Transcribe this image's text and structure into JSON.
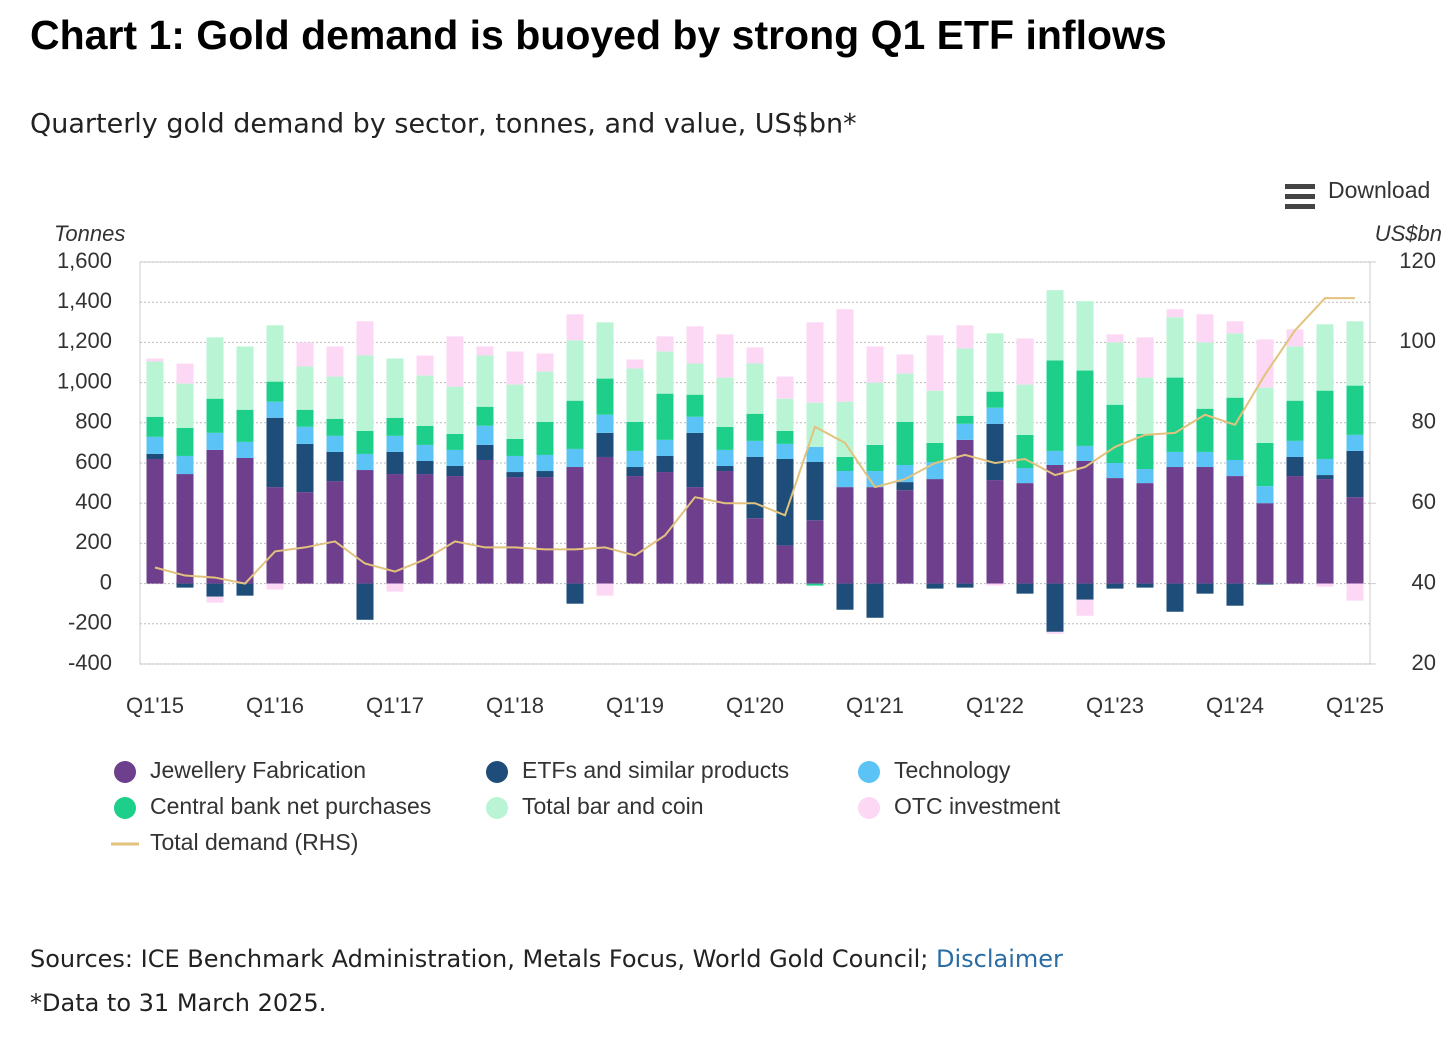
{
  "chart_data": {
    "type": "bar",
    "stacked": true,
    "title": "Chart 1: Gold demand is buoyed by strong Q1 ETF inflows",
    "subtitle": "Quarterly gold demand by sector, tonnes, and value, US$bn*",
    "download": "Download",
    "ylabel": "Tonnes",
    "y2label": "US$bn",
    "categories": [
      "Q1'15",
      null,
      null,
      null,
      "Q1'16",
      null,
      null,
      null,
      "Q1'17",
      null,
      null,
      null,
      "Q1'18",
      null,
      null,
      null,
      "Q1'19",
      null,
      null,
      null,
      "Q1'20",
      null,
      null,
      null,
      "Q1'21",
      null,
      null,
      null,
      "Q1'22",
      null,
      null,
      null,
      "Q1'23",
      null,
      null,
      null,
      "Q1'24",
      null,
      null,
      null,
      "Q1'25"
    ],
    "ylim": [
      -400,
      1600
    ],
    "yticks": [
      {
        "value": 1600,
        "label": "1,600"
      },
      {
        "value": 1400,
        "label": "1,400"
      },
      {
        "value": 1200,
        "label": "1,200"
      },
      {
        "value": 1000,
        "label": "1,000"
      },
      800,
      600,
      400,
      200,
      0,
      -200,
      -400
    ],
    "y2lim": [
      20,
      120
    ],
    "y2ticks": [
      120,
      100,
      80,
      60,
      40,
      20
    ],
    "grid": true,
    "series": [
      {
        "name": "Jewellery Fabrication",
        "color": "#6e3f8c",
        "values": [
          620,
          545,
          665,
          625,
          480,
          455,
          510,
          565,
          545,
          545,
          535,
          615,
          530,
          530,
          580,
          630,
          535,
          555,
          480,
          560,
          325,
          190,
          315,
          480,
          480,
          465,
          520,
          715,
          515,
          500,
          590,
          610,
          525,
          500,
          580,
          580,
          535,
          400,
          535,
          520,
          430
        ]
      },
      {
        "name": "ETFs and similar products",
        "color": "#1d4d78",
        "values": [
          25,
          -20,
          -65,
          -60,
          345,
          240,
          145,
          -180,
          110,
          65,
          50,
          75,
          25,
          30,
          -100,
          120,
          45,
          80,
          270,
          25,
          305,
          430,
          290,
          -130,
          -170,
          40,
          -25,
          -20,
          280,
          -50,
          -240,
          -80,
          -25,
          -20,
          -140,
          -50,
          -110,
          -5,
          95,
          20,
          230
        ]
      },
      {
        "name": "Technology",
        "color": "#5bc3f6",
        "values": [
          85,
          90,
          85,
          80,
          80,
          85,
          80,
          80,
          80,
          80,
          80,
          95,
          80,
          80,
          90,
          90,
          80,
          80,
          80,
          80,
          80,
          75,
          75,
          80,
          80,
          85,
          85,
          80,
          80,
          75,
          70,
          75,
          75,
          70,
          75,
          75,
          80,
          85,
          80,
          80,
          80
        ]
      },
      {
        "name": "Central bank net purchases",
        "color": "#1ecf8b",
        "values": [
          100,
          140,
          170,
          160,
          100,
          85,
          85,
          115,
          90,
          95,
          80,
          95,
          85,
          165,
          240,
          180,
          145,
          230,
          110,
          115,
          135,
          65,
          -10,
          70,
          130,
          215,
          95,
          40,
          80,
          165,
          450,
          375,
          290,
          175,
          370,
          215,
          310,
          215,
          200,
          340,
          245
        ]
      },
      {
        "name": "Total bar and coin",
        "color": "#b9f5d5",
        "values": [
          275,
          220,
          305,
          315,
          280,
          215,
          210,
          375,
          295,
          250,
          235,
          255,
          270,
          250,
          300,
          280,
          265,
          210,
          155,
          245,
          250,
          160,
          220,
          275,
          310,
          240,
          260,
          335,
          290,
          250,
          350,
          345,
          310,
          280,
          300,
          330,
          320,
          275,
          270,
          330,
          320
        ]
      },
      {
        "name": "OTC investment",
        "color": "#fcd8f5",
        "values": [
          15,
          100,
          -30,
          0,
          -30,
          120,
          150,
          170,
          -40,
          100,
          250,
          45,
          165,
          90,
          130,
          -60,
          45,
          75,
          185,
          215,
          80,
          110,
          400,
          460,
          180,
          95,
          275,
          115,
          -10,
          230,
          -10,
          -80,
          40,
          200,
          40,
          140,
          60,
          240,
          85,
          -15,
          -85
        ]
      },
      {
        "name": "Total demand (RHS)",
        "type": "line",
        "axis": "y2",
        "color": "#e2c27d",
        "values": [
          44,
          42,
          41.5,
          40,
          48,
          49,
          50.5,
          45,
          43,
          46,
          50.5,
          49,
          49,
          48.5,
          48.5,
          49,
          47,
          52,
          61.5,
          60,
          60,
          57,
          79,
          75,
          64,
          66,
          70,
          72,
          70,
          71,
          67,
          69,
          74,
          77,
          77.5,
          82,
          79.5,
          92,
          103,
          111,
          111
        ]
      }
    ],
    "sources": "Sources: ICE Benchmark Administration, Metals Focus, World Gold Council;",
    "disclaimer": "Disclaimer",
    "note": "*Data to 31 March 2025."
  }
}
